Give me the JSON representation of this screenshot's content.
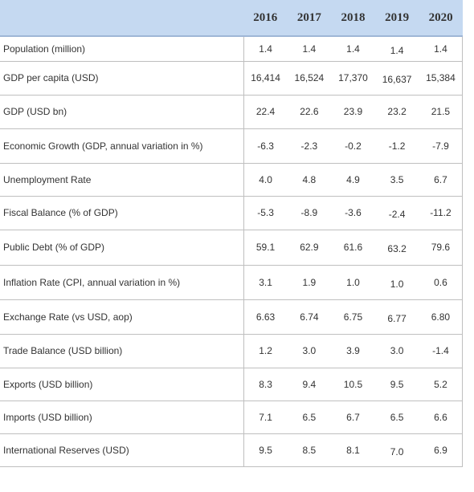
{
  "table": {
    "years": [
      "2016",
      "2017",
      "2018",
      "2019",
      "2020"
    ],
    "rows": [
      {
        "label": "Population (million)",
        "values": [
          "1.4",
          "1.4",
          "1.4",
          "1.4",
          "1.4"
        ]
      },
      {
        "label": "GDP per capita (USD)",
        "values": [
          "16,414",
          "16,524",
          "17,370",
          "16,637",
          "15,384"
        ]
      },
      {
        "label": "GDP (USD bn)",
        "values": [
          "22.4",
          "22.6",
          "23.9",
          "23.2",
          "21.5"
        ]
      },
      {
        "label": "Economic Growth (GDP, annual variation in %)",
        "values": [
          "-6.3",
          "-2.3",
          "-0.2",
          "-1.2",
          "-7.9"
        ]
      },
      {
        "label": "Unemployment Rate",
        "values": [
          "4.0",
          "4.8",
          "4.9",
          "3.5",
          "6.7"
        ]
      },
      {
        "label": "Fiscal Balance (% of GDP)",
        "values": [
          "-5.3",
          "-8.9",
          "-3.6",
          "-2.4",
          "-11.2"
        ]
      },
      {
        "label": "Public Debt (% of GDP)",
        "values": [
          "59.1",
          "62.9",
          "61.6",
          "63.2",
          "79.6"
        ]
      },
      {
        "label": "Inflation Rate (CPI, annual variation in %)",
        "values": [
          "3.1",
          "1.9",
          "1.0",
          "1.0",
          "0.6"
        ]
      },
      {
        "label": "Exchange Rate (vs USD, aop)",
        "values": [
          "6.63",
          "6.74",
          "6.75",
          "6.77",
          "6.80"
        ]
      },
      {
        "label": "Trade Balance (USD billion)",
        "values": [
          "1.2",
          "3.0",
          "3.9",
          "3.0",
          "-1.4"
        ]
      },
      {
        "label": "Exports (USD billion)",
        "values": [
          "8.3",
          "9.4",
          "10.5",
          "9.5",
          "5.2"
        ]
      },
      {
        "label": "Imports (USD billion)",
        "values": [
          "7.1",
          "6.5",
          "6.7",
          "6.5",
          "6.6"
        ]
      },
      {
        "label": "International Reserves (USD)",
        "values": [
          "9.5",
          "8.5",
          "8.1",
          "7.0",
          "6.9"
        ]
      }
    ]
  }
}
